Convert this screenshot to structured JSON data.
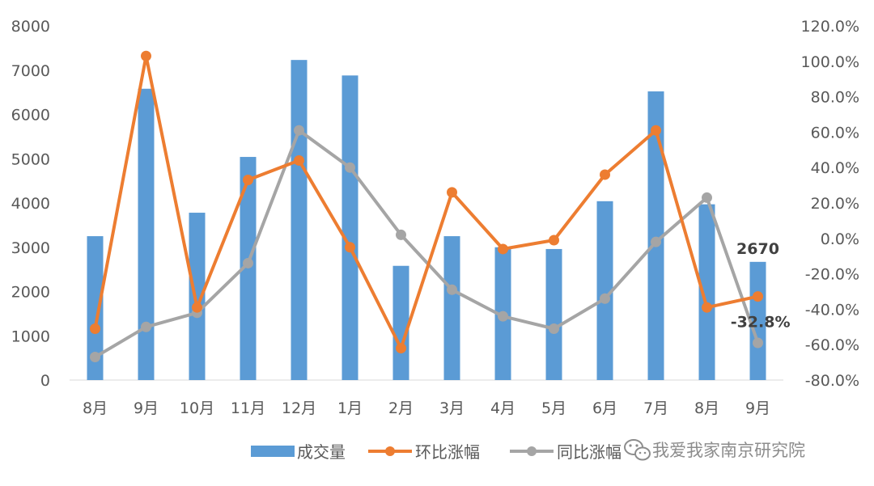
{
  "chart_data": {
    "type": "bar",
    "categories": [
      "8月",
      "9月",
      "10月",
      "11月",
      "12月",
      "1月",
      "2月",
      "3月",
      "4月",
      "5月",
      "6月",
      "7月",
      "8月",
      "9月"
    ],
    "series": [
      {
        "name": "成交量",
        "type": "bar",
        "axis": "left",
        "color": "#5b9bd5",
        "values": [
          3250,
          6580,
          3780,
          5040,
          7230,
          6880,
          2580,
          3250,
          3000,
          2960,
          4040,
          6520,
          3970,
          2670
        ]
      },
      {
        "name": "环比涨幅",
        "type": "line",
        "axis": "right",
        "color": "#ed7d31",
        "values": [
          -51,
          103,
          -39,
          33,
          44,
          -5,
          -62,
          26,
          -6,
          -1,
          36,
          61,
          -39,
          -32.8
        ]
      },
      {
        "name": "同比涨幅",
        "type": "line",
        "axis": "right",
        "color": "#a5a5a5",
        "values": [
          -67,
          -50,
          -42,
          -14,
          61,
          40,
          2,
          -29,
          -44,
          -51,
          -34,
          -2,
          23,
          -59
        ]
      }
    ],
    "left_axis": {
      "min": 0,
      "max": 8000,
      "step": 1000,
      "ticks": [
        "0",
        "1000",
        "2000",
        "3000",
        "4000",
        "5000",
        "6000",
        "7000",
        "8000"
      ]
    },
    "right_axis": {
      "min": -80,
      "max": 120,
      "step": 20,
      "ticks": [
        "-80.0%",
        "-60.0%",
        "-40.0%",
        "-20.0%",
        "0.0%",
        "20.0%",
        "40.0%",
        "60.0%",
        "80.0%",
        "100.0%",
        "120.0%"
      ]
    },
    "annotations": [
      {
        "text": "2670",
        "series": "成交量",
        "index": 13
      },
      {
        "text": "-32.8%",
        "series": "环比涨幅",
        "index": 13
      }
    ],
    "legend": {
      "position": "bottom",
      "items": [
        "成交量",
        "环比涨幅",
        "同比涨幅"
      ]
    },
    "grid": false
  },
  "watermark": {
    "icon": "wechat-icon",
    "text": "我爱我家南京研究院"
  }
}
